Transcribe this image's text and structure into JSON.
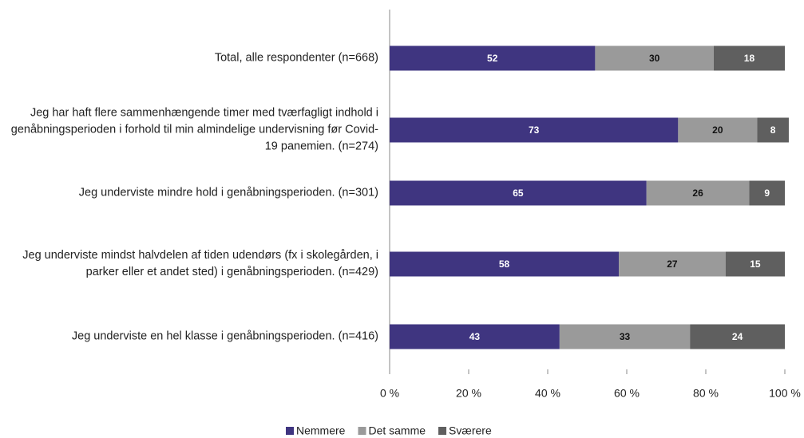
{
  "chart_data": {
    "type": "stacked-bar-horizontal",
    "categories": [
      "Total, alle respondenter (n=668)",
      "Jeg har haft flere sammenhængende timer med tværfagligt indhold i genåbningsperioden i forhold til min almindelige undervisning før Covid-19 panemien. (n=274)",
      "Jeg underviste mindre hold i genåbningsperioden. (n=301)",
      "Jeg underviste mindst halvdelen af tiden udendørs (fx i skolegården, i parker eller et andet sted) i genåbningsperioden. (n=429)",
      "Jeg underviste en hel klasse i genåbningsperioden. (n=416)"
    ],
    "series": [
      {
        "name": "Nemmere",
        "color": "#3f3580",
        "label_color": "#ffffff",
        "values": [
          52,
          73,
          65,
          58,
          43
        ]
      },
      {
        "name": "Det samme",
        "color": "#9a9a9a",
        "label_color": "#111111",
        "values": [
          30,
          20,
          26,
          27,
          33
        ]
      },
      {
        "name": "Sværere",
        "color": "#5f5f5f",
        "label_color": "#ffffff",
        "values": [
          18,
          8,
          9,
          15,
          24
        ]
      }
    ],
    "xlim": [
      0,
      100
    ],
    "xticks": [
      {
        "value": 0,
        "label": "0 %"
      },
      {
        "value": 20,
        "label": "20 %"
      },
      {
        "value": 40,
        "label": "40 %"
      },
      {
        "value": 60,
        "label": "60 %"
      },
      {
        "value": 80,
        "label": "80 %"
      },
      {
        "value": 100,
        "label": "100 %"
      }
    ],
    "grid": false,
    "legend": "bottom"
  }
}
